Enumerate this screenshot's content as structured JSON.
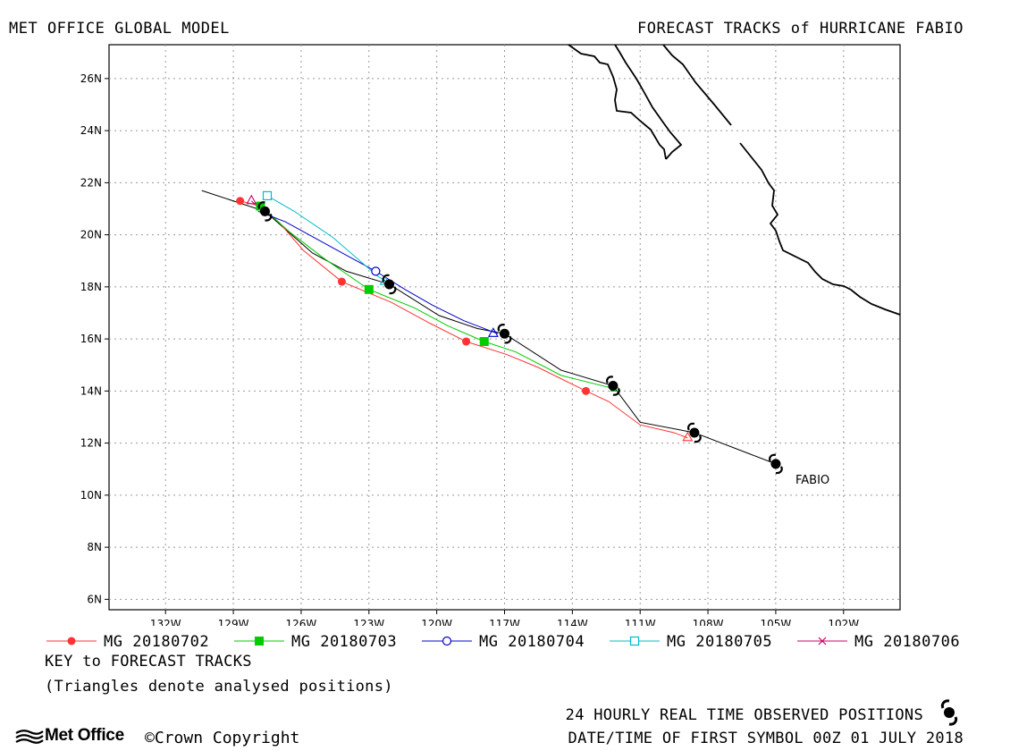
{
  "header": {
    "left_title": "MET OFFICE GLOBAL MODEL",
    "right_title": "FORECAST TRACKS of HURRICANE FABIO"
  },
  "chart_data": {
    "type": "map-tracks",
    "x_ticks": [
      "132W",
      "129W",
      "126W",
      "123W",
      "120W",
      "117W",
      "114W",
      "111W",
      "108W",
      "105W",
      "102W"
    ],
    "x_tick_values": [
      -132,
      -129,
      -126,
      -123,
      -120,
      -117,
      -114,
      -111,
      -108,
      -105,
      -102
    ],
    "y_ticks": [
      "6N",
      "8N",
      "10N",
      "12N",
      "14N",
      "16N",
      "18N",
      "20N",
      "22N",
      "24N",
      "26N"
    ],
    "y_tick_values": [
      6,
      8,
      10,
      12,
      14,
      16,
      18,
      20,
      22,
      24,
      26
    ],
    "xlim": [
      -134.5,
      -99.5
    ],
    "ylim": [
      5.6,
      27.3
    ],
    "grid": true,
    "storm_label": "FABIO",
    "observed_track": [
      [
        -130.4,
        21.7
      ],
      [
        -127.6,
        20.9
      ],
      [
        -125.5,
        19.3
      ],
      [
        -124.0,
        18.6
      ],
      [
        -122.1,
        18.1
      ],
      [
        -119.9,
        16.9
      ],
      [
        -118.2,
        16.4
      ],
      [
        -117.0,
        16.2
      ],
      [
        -114.5,
        14.8
      ],
      [
        -112.2,
        14.2
      ],
      [
        -111.0,
        12.8
      ],
      [
        -108.6,
        12.4
      ],
      [
        -106.2,
        11.6
      ],
      [
        -105.0,
        11.2
      ]
    ],
    "observed_positions": [
      [
        -105.0,
        11.2
      ],
      [
        -108.6,
        12.4
      ],
      [
        -112.2,
        14.2
      ],
      [
        -117.0,
        16.2
      ],
      [
        -122.1,
        18.1
      ],
      [
        -127.6,
        20.9
      ]
    ],
    "forecasts": [
      {
        "name": "MG 20180702",
        "color": "#ff3333",
        "marker": "circle-filled",
        "points": [
          [
            -108.9,
            12.2
          ],
          [
            -109.5,
            12.4
          ],
          [
            -111.0,
            12.7
          ],
          [
            -112.4,
            13.6
          ],
          [
            -113.4,
            14.0
          ],
          [
            -115.5,
            14.9
          ],
          [
            -116.9,
            15.4
          ],
          [
            -118.7,
            15.9
          ],
          [
            -120.3,
            16.6
          ],
          [
            -122.0,
            17.4
          ],
          [
            -124.2,
            18.2
          ],
          [
            -125.9,
            19.4
          ],
          [
            -127.0,
            20.5
          ],
          [
            -127.8,
            21.1
          ],
          [
            -128.7,
            21.3
          ]
        ],
        "markers": [
          [
            -113.4,
            14.0
          ],
          [
            -118.7,
            15.9
          ],
          [
            -124.2,
            18.2
          ],
          [
            -128.7,
            21.3
          ]
        ]
      },
      {
        "name": "MG 20180703",
        "color": "#00cc00",
        "marker": "square-filled",
        "points": [
          [
            -112.2,
            14.1
          ],
          [
            -114.5,
            14.6
          ],
          [
            -116.5,
            15.5
          ],
          [
            -117.9,
            15.9
          ],
          [
            -119.5,
            16.5
          ],
          [
            -121.0,
            17.2
          ],
          [
            -123.0,
            17.9
          ],
          [
            -125.0,
            19.1
          ],
          [
            -126.5,
            20.1
          ],
          [
            -127.8,
            21.1
          ]
        ],
        "markers": [
          [
            -117.9,
            15.9
          ],
          [
            -123.0,
            17.9
          ],
          [
            -127.8,
            21.1
          ]
        ]
      },
      {
        "name": "MG 20180704",
        "color": "#0000cc",
        "marker": "circle-open",
        "points": [
          [
            -117.3,
            16.2
          ],
          [
            -118.8,
            16.7
          ],
          [
            -120.2,
            17.3
          ],
          [
            -121.4,
            17.9
          ],
          [
            -122.7,
            18.6
          ],
          [
            -124.6,
            19.5
          ],
          [
            -126.7,
            20.5
          ],
          [
            -127.9,
            20.9
          ]
        ],
        "markers": [
          [
            -122.7,
            18.6
          ]
        ]
      },
      {
        "name": "MG 20180705",
        "color": "#00bbcc",
        "marker": "square-open",
        "points": [
          [
            -122.2,
            18.2
          ],
          [
            -122.6,
            18.4
          ],
          [
            -124.6,
            19.9
          ],
          [
            -126.3,
            20.9
          ],
          [
            -127.5,
            21.5
          ]
        ],
        "markers": [
          [
            -127.5,
            21.5
          ]
        ]
      },
      {
        "name": "MG 20180706",
        "color": "#cc0066",
        "marker": "x",
        "points": [
          [
            -127.7,
            20.9
          ],
          [
            -128.2,
            21.3
          ]
        ],
        "markers": []
      }
    ],
    "analysed_triangles": [
      {
        "color": "#cc0066",
        "pos": [
          -128.2,
          21.3
        ]
      },
      {
        "color": "#00bbcc",
        "pos": [
          -122.3,
          18.2
        ]
      },
      {
        "color": "#0000cc",
        "pos": [
          -117.5,
          16.2
        ]
      },
      {
        "color": "#00cc00",
        "pos": [
          -112.1,
          14.1
        ]
      },
      {
        "color": "#ff3333",
        "pos": [
          -108.9,
          12.2
        ]
      }
    ]
  },
  "legend": {
    "items": [
      {
        "label": "MG 20180702",
        "color": "#ff3333",
        "marker": "circle-filled"
      },
      {
        "label": "MG 20180703",
        "color": "#00cc00",
        "marker": "square-filled"
      },
      {
        "label": "MG 20180704",
        "color": "#0000cc",
        "marker": "circle-open"
      },
      {
        "label": "MG 20180705",
        "color": "#00bbcc",
        "marker": "square-open"
      },
      {
        "label": "MG 20180706",
        "color": "#cc0066",
        "marker": "x"
      }
    ]
  },
  "footer": {
    "key_title": "KEY to FORECAST TRACKS",
    "key_note": "(Triangles denote analysed positions)",
    "observed_note": "24 HOURLY REAL TIME OBSERVED POSITIONS",
    "date_line": "DATE/TIME OF FIRST SYMBOL 00Z 01 JULY 2018",
    "logo_text": "Met Office",
    "copyright": "Crown Copyright"
  }
}
